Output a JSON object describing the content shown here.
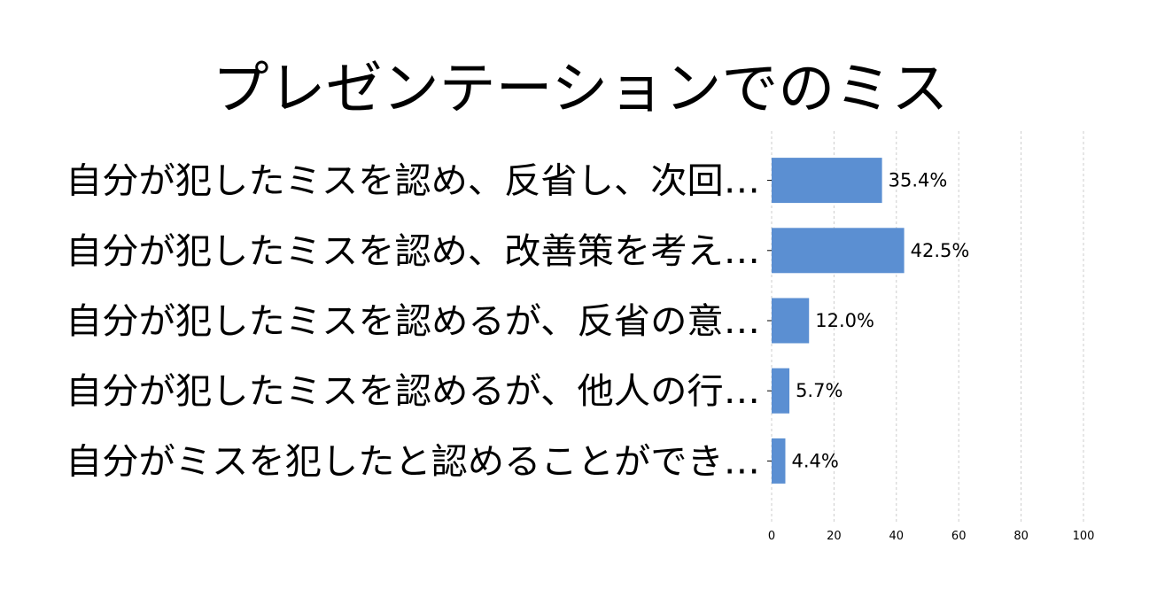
{
  "chart_data": {
    "type": "bar",
    "orientation": "horizontal",
    "title": "プレゼンテーションでのミス",
    "categories": [
      "自分が犯したミスを認め、反省し、次回…",
      "自分が犯したミスを認め、改善策を考え…",
      "自分が犯したミスを認めるが、反省の意…",
      "自分が犯したミスを認めるが、他人の行…",
      "自分がミスを犯したと認めることができ…"
    ],
    "values": [
      35.4,
      42.5,
      12.0,
      5.7,
      4.4
    ],
    "value_labels": [
      "35.4%",
      "42.5%",
      "12.0%",
      "5.7%",
      "4.4%"
    ],
    "xlim": [
      0,
      100
    ],
    "xticks": [
      0,
      20,
      40,
      60,
      80,
      100
    ],
    "xtick_labels": [
      "0",
      "20",
      "40",
      "60",
      "80",
      "100"
    ],
    "grid": true,
    "bar_color": "#5b8fd2"
  }
}
